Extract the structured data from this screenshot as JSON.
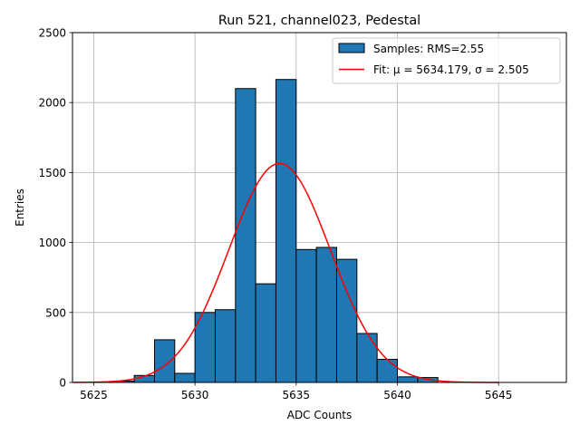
{
  "chart_data": {
    "type": "bar",
    "title": "Run 521, channel023, Pedestal",
    "xlabel": "ADC Counts",
    "ylabel": "Entries",
    "xlim": [
      5623.95,
      5648.35
    ],
    "ylim": [
      0,
      2500
    ],
    "xticks": [
      5625,
      5630,
      5635,
      5640,
      5645
    ],
    "yticks": [
      0,
      500,
      1000,
      1500,
      2000,
      2500
    ],
    "grid": true,
    "legend_position": "top-right",
    "bar_color": "#1f77b4",
    "bar_edge_color": "#000000",
    "fit_color": "#ff0000",
    "series": [
      {
        "name": "Samples: RMS=2.55",
        "kind": "histogram",
        "bins": [
          {
            "x0": 5626,
            "x1": 5627,
            "value": 10
          },
          {
            "x0": 5627,
            "x1": 5628,
            "value": 50
          },
          {
            "x0": 5628,
            "x1": 5629,
            "value": 305
          },
          {
            "x0": 5629,
            "x1": 5630,
            "value": 65
          },
          {
            "x0": 5630,
            "x1": 5631,
            "value": 500
          },
          {
            "x0": 5631,
            "x1": 5632,
            "value": 520
          },
          {
            "x0": 5632,
            "x1": 5633,
            "value": 2100
          },
          {
            "x0": 5633,
            "x1": 5634,
            "value": 705
          },
          {
            "x0": 5634,
            "x1": 5635,
            "value": 2165
          },
          {
            "x0": 5635,
            "x1": 5636,
            "value": 950
          },
          {
            "x0": 5636,
            "x1": 5637,
            "value": 965
          },
          {
            "x0": 5637,
            "x1": 5638,
            "value": 880
          },
          {
            "x0": 5638,
            "x1": 5639,
            "value": 350
          },
          {
            "x0": 5639,
            "x1": 5640,
            "value": 165
          },
          {
            "x0": 5640,
            "x1": 5641,
            "value": 40
          },
          {
            "x0": 5641,
            "x1": 5642,
            "value": 35
          }
        ]
      },
      {
        "name": "Fit: μ = 5634.179, σ = 2.505",
        "kind": "gaussian",
        "mu": 5634.179,
        "sigma": 2.505,
        "amplitude": 1565,
        "x_range": [
          5624,
          5645
        ]
      }
    ]
  }
}
